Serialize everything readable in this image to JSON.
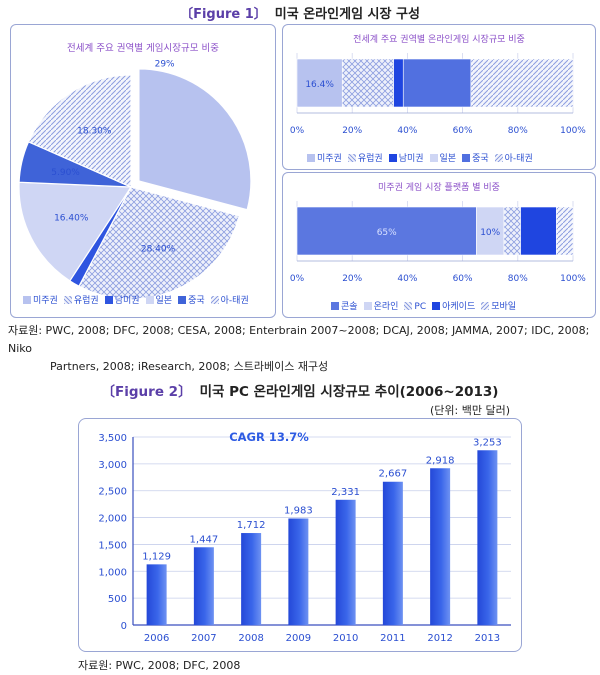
{
  "figure1": {
    "tag": "〔Figure 1〕",
    "title": "미국 온라인게임 시장 구성",
    "pie": {
      "title": "전세계 주요 권역별 게임시장규모 비중",
      "slices": [
        {
          "name": "미주권",
          "value": 29,
          "label": "29%",
          "fill": "#b7c2ef"
        },
        {
          "name": "유럽권",
          "value": 28.4,
          "label": "28.40%",
          "fill": "url(#hatchCross)"
        },
        {
          "name": "남미권",
          "value": 1.5,
          "label": "",
          "fill": "#2f55e0"
        },
        {
          "name": "일본",
          "value": 16.4,
          "label": "16.40%",
          "fill": "#cfd6f4"
        },
        {
          "name": "중국",
          "value": 5.9,
          "label": "5.90%",
          "fill": "#3f63d8"
        },
        {
          "name": "아-태권",
          "value": 18.3,
          "label": "18.30%",
          "fill": "url(#hatchDiag)"
        }
      ],
      "legend": [
        "미주권",
        "유럽권",
        "남미권",
        "일본",
        "중국",
        "아-태권"
      ]
    },
    "region_bar": {
      "title": "전세계 주요 권역별 온라인게임 시장규모 비중",
      "segments": [
        {
          "name": "미주권",
          "value": 16.4,
          "label": "16.4%",
          "fill": "#b7c2ef"
        },
        {
          "name": "유럽권",
          "value": 18.6,
          "label": "",
          "fill": "url(#hatchCross)"
        },
        {
          "name": "남미권",
          "value": 3.5,
          "label": "",
          "fill": "#1f45e0"
        },
        {
          "name": "일본",
          "value": 0,
          "label": "",
          "fill": "#cfd6f4"
        },
        {
          "name": "중국",
          "value": 24.5,
          "label": "",
          "fill": "#5170e0"
        },
        {
          "name": "아-태권",
          "value": 37,
          "label": "",
          "fill": "url(#hatchDiag)"
        }
      ],
      "legend": [
        "미주권",
        "유럽권",
        "남미권",
        "일본",
        "중국",
        "아-태권"
      ]
    },
    "platform_bar": {
      "title": "미주권 게임 시장 플랫폼 별 비중",
      "segments": [
        {
          "name": "콘솔",
          "value": 65,
          "label": "65%",
          "fill": "#5b77e0"
        },
        {
          "name": "온라인",
          "value": 10,
          "label": "10%",
          "fill": "#cfd6f4"
        },
        {
          "name": "PC",
          "value": 6,
          "label": "",
          "fill": "url(#hatchCross)"
        },
        {
          "name": "아케이드",
          "value": 13,
          "label": "",
          "fill": "#1f45e0"
        },
        {
          "name": "모바일",
          "value": 6,
          "label": "",
          "fill": "url(#hatchDiag)"
        }
      ],
      "legend": [
        "콘솔",
        "온라인",
        "PC",
        "아케이드",
        "모바일"
      ]
    },
    "x_ticks": [
      "0%",
      "20%",
      "40%",
      "60%",
      "80%",
      "100%"
    ],
    "source_line1": "자료원: PWC, 2008; DFC, 2008; CESA, 2008; Enterbrain 2007~2008; DCAJ, 2008; JAMMA, 2007; IDC, 2008; Niko",
    "source_line2": "Partners, 2008; iResearch, 2008; 스트라베이스 재구성"
  },
  "figure2": {
    "tag": "〔Figure 2〕",
    "title": "미국 PC 온라인게임 시장규모 추이(2006~2013)",
    "unit": "(단위: 백만 달러)",
    "source": "자료원: PWC, 2008; DFC, 2008"
  },
  "chart_data": [
    {
      "type": "pie",
      "title": "전세계 주요 권역별 게임시장규모 비중",
      "categories": [
        "미주권",
        "유럽권",
        "남미권",
        "일본",
        "중국",
        "아-태권"
      ],
      "values": [
        29,
        28.4,
        1.5,
        16.4,
        5.9,
        18.3
      ]
    },
    {
      "type": "bar",
      "title": "전세계 주요 권역별 온라인게임 시장규모 비중",
      "categories": [
        "미주권",
        "유럽권",
        "남미권",
        "일본",
        "중국",
        "아-태권"
      ],
      "values": [
        16.4,
        18.6,
        3.5,
        0,
        24.5,
        37
      ],
      "xlim": [
        0,
        100
      ]
    },
    {
      "type": "bar",
      "title": "미주권 게임 시장 플랫폼 별 비중",
      "categories": [
        "콘솔",
        "온라인",
        "PC",
        "아케이드",
        "모바일"
      ],
      "values": [
        65,
        10,
        6,
        13,
        6
      ],
      "xlim": [
        0,
        100
      ]
    },
    {
      "type": "bar",
      "title": "미국 PC 온라인게임 시장규모 추이(2006~2013)",
      "annotation": "CAGR 13.7%",
      "categories": [
        "2006",
        "2007",
        "2008",
        "2009",
        "2010",
        "2011",
        "2012",
        "2013"
      ],
      "values": [
        1129,
        1447,
        1712,
        1983,
        2331,
        2667,
        2918,
        3253
      ],
      "value_labels": [
        "1,129",
        "1,447",
        "1,712",
        "1,983",
        "2,331",
        "2,667",
        "2,918",
        "3,253"
      ],
      "ylim": [
        0,
        3500
      ],
      "yticks": [
        "0",
        "500",
        "1,000",
        "1,500",
        "2,000",
        "2,500",
        "3,000",
        "3,500"
      ],
      "grid": true,
      "bar_color": "#2d5be3"
    }
  ]
}
